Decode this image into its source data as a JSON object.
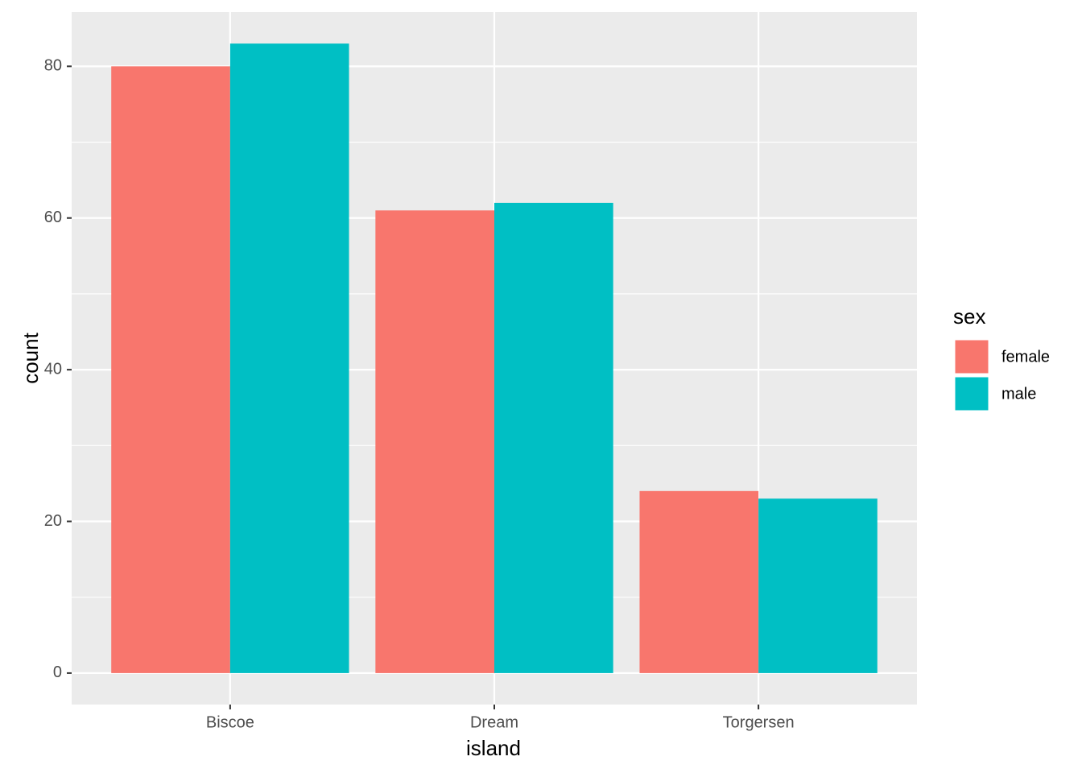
{
  "chart_data": {
    "type": "bar",
    "x_label": "island",
    "y_label": "count",
    "legend_title": "sex",
    "categories": [
      "Biscoe",
      "Dream",
      "Torgersen"
    ],
    "series": [
      {
        "name": "female",
        "color": "#F8766D",
        "values": [
          80,
          61,
          24
        ]
      },
      {
        "name": "male",
        "color": "#00BFC4",
        "values": [
          83,
          62,
          23
        ]
      }
    ],
    "ylim": [
      -4.15,
      87.15
    ],
    "yticks": [
      0,
      20,
      40,
      60,
      80
    ],
    "grid": true,
    "legend": "right"
  }
}
